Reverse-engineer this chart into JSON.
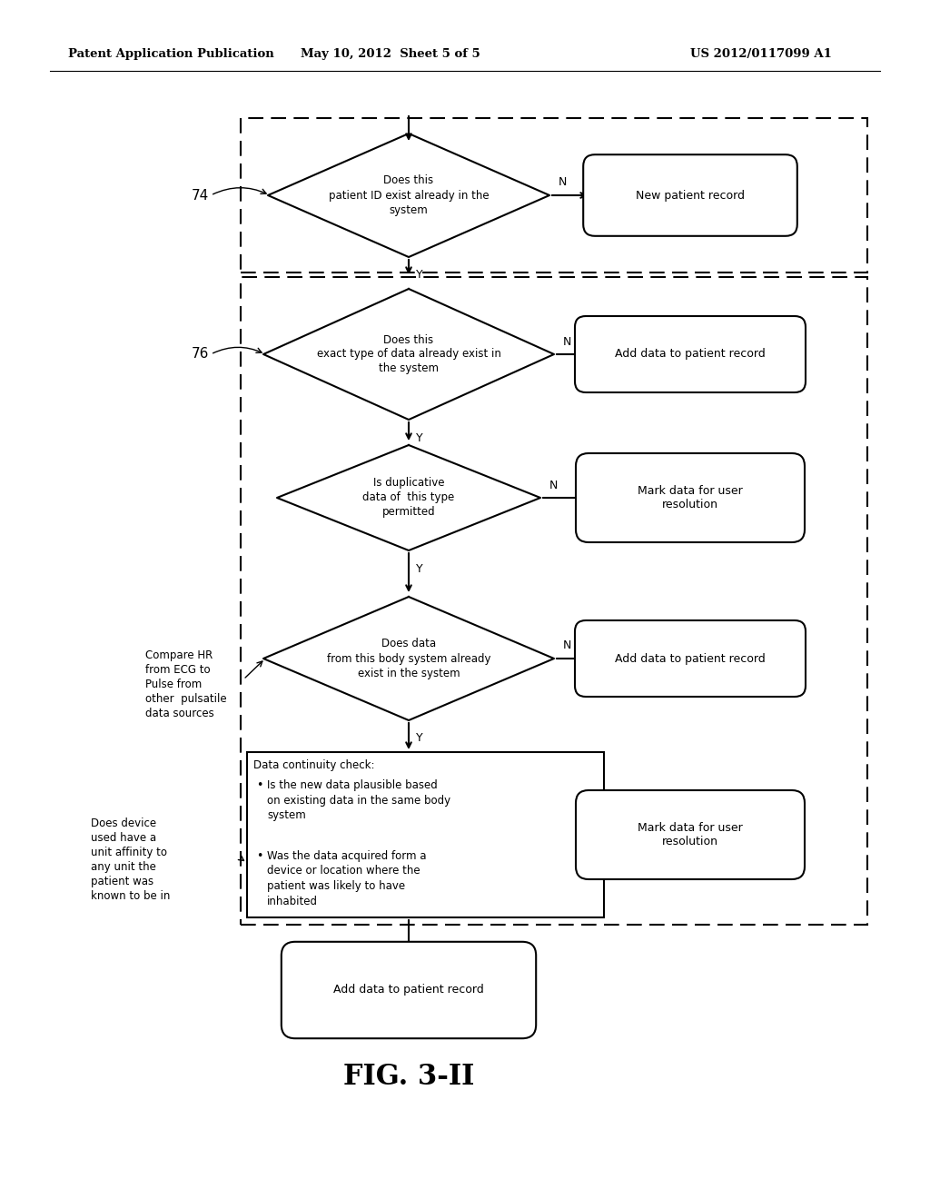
{
  "header_left": "Patent Application Publication",
  "header_mid": "May 10, 2012  Sheet 5 of 5",
  "header_right": "US 2012/0117099 A1",
  "fig_label": "FIG. 3-II",
  "bg_color": "#ffffff",
  "line_color": "#000000",
  "diamond1_text": "Does this\npatient ID exist already in the\nsystem",
  "rounded1_text": "New patient record",
  "diamond2_text": "Does this\nexact type of data already exist in\nthe system",
  "rounded2_text": "Add data to patient record",
  "diamond3_text": "Is duplicative\ndata of  this type\npermitted",
  "rounded3_text": "Mark data for user\nresolution",
  "diamond4_text": "Does data\nfrom this body system already\nexist in the system",
  "rounded4_text": "Add data to patient record",
  "rect_text_title": "Data continuity check:",
  "rect_bullet1": "Is the new data plausible based\non existing data in the same body\nsystem",
  "rect_bullet2": "Was the data acquired form a\ndevice or location where the\npatient was likely to have\ninhabited",
  "rounded5_text": "Mark data for user\nresolution",
  "rounded6_text": "Add data to patient record",
  "label74": "74",
  "label76": "76",
  "note1_text": "Compare HR\nfrom ECG to\nPulse from\nother  pulsatile\ndata sources",
  "note2_text": "Does device\nused have a\nunit affinity to\nany unit the\npatient was\nknown to be in"
}
